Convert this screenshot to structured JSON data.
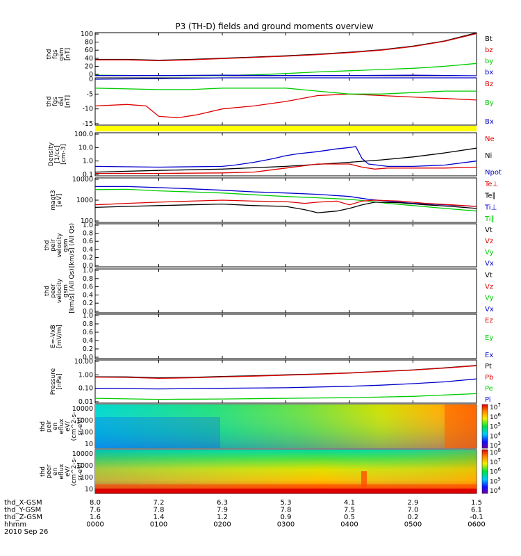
{
  "title": "P3 (TH-D) fields and ground moments overview",
  "chart_data": {
    "type": "line",
    "x_label": "hhmm",
    "date_label": "2010 Sep 26",
    "x_ticks": [
      "0000",
      "0100",
      "0200",
      "0300",
      "0400",
      "0500",
      "0600"
    ],
    "ephemeris": [
      {
        "label": "thd_X-GSM",
        "values": [
          "8.0",
          "7.2",
          "6.3",
          "5.3",
          "4.1",
          "2.9",
          "1.5"
        ]
      },
      {
        "label": "thd_Y-GSM",
        "values": [
          "7.6",
          "7.8",
          "7.9",
          "7.8",
          "7.5",
          "7.0",
          "6.1"
        ]
      },
      {
        "label": "thd_Z-GSM",
        "values": [
          "1.6",
          "1.4",
          "1.2",
          "0.9",
          "0.5",
          "0.2",
          "-0.1"
        ]
      }
    ],
    "panels": [
      {
        "id": "fgs-gsm",
        "ylabel": [
          "thd",
          "fgs",
          "gsm",
          "[nT]"
        ],
        "scale": "linear",
        "y_ticks": [
          "100",
          "80",
          "60",
          "40",
          "20",
          "0"
        ],
        "legend": [
          {
            "label": "Bt",
            "color": "#000000"
          },
          {
            "label": "bz",
            "color": "#dd0000"
          },
          {
            "label": "by",
            "color": "#00cc00"
          },
          {
            "label": "bx",
            "color": "#0000cc"
          }
        ],
        "series": [
          {
            "color": "#000000",
            "x": [
              0,
              0.5,
              1,
              1.5,
              2,
              2.5,
              3,
              3.5,
              4,
              4.5,
              5,
              5.5,
              6
            ],
            "y": [
              37,
              37,
              35,
              37,
              40,
              43,
              46,
              50,
              55,
              61,
              70,
              83,
              103
            ]
          },
          {
            "color": "#dd0000",
            "x": [
              0,
              0.5,
              1,
              1.5,
              2,
              2.5,
              3,
              3.5,
              4,
              4.5,
              5,
              5.5,
              6
            ],
            "y": [
              36,
              36,
              34,
              36,
              39,
              42,
              45,
              49,
              54,
              60,
              69,
              82,
              101
            ]
          },
          {
            "color": "#00cc00",
            "x": [
              0,
              1,
              2,
              2.5,
              3,
              3.5,
              4,
              4.5,
              5,
              5.5,
              6
            ],
            "y": [
              -2,
              -4,
              -3,
              -1,
              2,
              6,
              9,
              12,
              15,
              20,
              27
            ]
          },
          {
            "color": "#0000cc",
            "x": [
              0,
              1,
              2,
              3,
              4,
              5,
              6
            ],
            "y": [
              -3,
              -3,
              -2,
              -3,
              -3,
              -2,
              -4
            ]
          }
        ]
      },
      {
        "id": "fgs-dsl",
        "ylabel": [
          "thd",
          "fgs",
          "dsl",
          "[nT]"
        ],
        "scale": "linear",
        "y_ticks": [
          "0",
          "-5",
          "-10",
          "-15"
        ],
        "legend": [
          {
            "label": "Bz",
            "color": "#dd0000"
          },
          {
            "label": "By",
            "color": "#00cc00"
          },
          {
            "label": "Bx",
            "color": "#0000cc"
          }
        ],
        "series": [
          {
            "color": "#dd0000",
            "x": [
              0,
              0.5,
              0.8,
              1,
              1.3,
              1.6,
              2,
              2.5,
              3,
              3.5,
              4,
              4.5,
              5,
              5.5,
              6
            ],
            "y": [
              -9,
              -8.5,
              -9,
              -12.5,
              -13,
              -12,
              -10,
              -9,
              -7.5,
              -5.5,
              -5,
              -5.5,
              -6,
              -6.5,
              -7
            ]
          },
          {
            "color": "#00cc00",
            "x": [
              0,
              1,
              1.5,
              2,
              2.5,
              3,
              3.5,
              4,
              4.5,
              5,
              5.5,
              6
            ],
            "y": [
              -3,
              -3.5,
              -3.5,
              -3,
              -3,
              -3,
              -4,
              -5,
              -5,
              -4.5,
              -4,
              -4
            ]
          },
          {
            "color": "#0000cc",
            "x": [
              0,
              1,
              2,
              3,
              3.5,
              4,
              4.5,
              5,
              5.5,
              6
            ],
            "y": [
              0,
              0.2,
              0.5,
              0.5,
              1,
              1.5,
              1.8,
              2,
              2,
              2
            ]
          }
        ]
      },
      {
        "id": "density",
        "ylabel": [
          "Density",
          "[1/cc]",
          "[cm-3]"
        ],
        "scale": "log",
        "log_range": [
          0.1,
          100
        ],
        "y_ticks": [
          "100.0",
          "10.0",
          "1.0",
          "0.1"
        ],
        "legend": [
          {
            "label": "Ne",
            "color": "#dd0000"
          },
          {
            "label": "Ni",
            "color": "#000000"
          },
          {
            "label": "Npot",
            "color": "#0000cc"
          }
        ],
        "series": [
          {
            "color": "#0000cc",
            "x": [
              0,
              1,
              2,
              2.2,
              2.5,
              2.8,
              3,
              3.2,
              3.5,
              3.8,
              4,
              4.1,
              4.2,
              4.3,
              4.6,
              5,
              5.5,
              6
            ],
            "y": [
              0.4,
              0.35,
              0.4,
              0.5,
              0.8,
              1.5,
              2.5,
              3.5,
              5,
              8,
              10,
              12,
              1.5,
              0.6,
              0.4,
              0.4,
              0.5,
              1
            ]
          },
          {
            "color": "#000000",
            "x": [
              0,
              1,
              2,
              3,
              4,
              4.5,
              5,
              5.5,
              6
            ],
            "y": [
              0.15,
              0.2,
              0.25,
              0.4,
              0.8,
              1.2,
              2,
              4,
              9
            ]
          },
          {
            "color": "#dd0000",
            "x": [
              0,
              1,
              2,
              2.5,
              3,
              3.5,
              4,
              4.2,
              4.4,
              4.6,
              5,
              5.5,
              6
            ],
            "y": [
              0.12,
              0.12,
              0.13,
              0.15,
              0.3,
              0.6,
              0.6,
              0.35,
              0.25,
              0.3,
              0.3,
              0.3,
              0.35
            ]
          }
        ]
      },
      {
        "id": "temperature",
        "ylabel": [
          "magt3",
          "[eV]"
        ],
        "scale": "log",
        "log_range": [
          100,
          10000
        ],
        "y_ticks": [
          "10000",
          "1000",
          "100"
        ],
        "legend": [
          {
            "label": "Te⊥",
            "color": "#dd0000"
          },
          {
            "label": "Te∥",
            "color": "#000000"
          },
          {
            "label": "Ti⊥",
            "color": "#0000cc"
          },
          {
            "label": "Ti∥",
            "color": "#00cc00"
          }
        ],
        "series": [
          {
            "color": "#0000cc",
            "x": [
              0,
              0.5,
              1,
              1.5,
              2,
              2.5,
              3,
              3.5,
              4,
              4.3,
              4.6,
              5,
              5.5,
              6
            ],
            "y": [
              4500,
              4500,
              4000,
              3500,
              3000,
              2500,
              2200,
              1900,
              1500,
              1100,
              900,
              700,
              600,
              500
            ]
          },
          {
            "color": "#00cc00",
            "x": [
              0,
              0.5,
              1,
              1.5,
              2,
              2.5,
              3,
              3.5,
              4,
              4.3,
              4.6,
              5,
              5.5,
              6
            ],
            "y": [
              3200,
              3300,
              2800,
              2500,
              2200,
              1800,
              1500,
              1300,
              1100,
              900,
              700,
              550,
              400,
              300
            ]
          },
          {
            "color": "#dd0000",
            "x": [
              0,
              0.5,
              1,
              1.5,
              2,
              2.5,
              3,
              3.3,
              3.5,
              3.8,
              4,
              4.2,
              4.4,
              4.8,
              5.2,
              5.6,
              6
            ],
            "y": [
              600,
              700,
              800,
              900,
              1000,
              900,
              850,
              700,
              800,
              900,
              600,
              900,
              1000,
              900,
              700,
              600,
              500
            ]
          },
          {
            "color": "#000000",
            "x": [
              0,
              0.5,
              1,
              1.5,
              2,
              2.5,
              3,
              3.3,
              3.5,
              3.8,
              4,
              4.2,
              4.4,
              4.8,
              5.2,
              5.6,
              6
            ],
            "y": [
              450,
              500,
              550,
              600,
              650,
              550,
              500,
              350,
              250,
              300,
              400,
              600,
              800,
              750,
              600,
              500,
              400
            ]
          }
        ]
      },
      {
        "id": "peir-velocity",
        "ylabel": [
          "thd",
          "peir",
          "velocity",
          "gsm",
          "[km/s] (All Qs)"
        ],
        "scale": "linear",
        "y_ticks": [
          "1.0",
          "0.8",
          "0.6",
          "0.4",
          "0.2",
          "0.0"
        ],
        "legend": [
          {
            "label": "Vt",
            "color": "#000000"
          },
          {
            "label": "Vz",
            "color": "#dd0000"
          },
          {
            "label": "Vy",
            "color": "#00cc00"
          },
          {
            "label": "Vx",
            "color": "#0000cc"
          }
        ],
        "series": []
      },
      {
        "id": "peer-velocity",
        "ylabel": [
          "thd",
          "peer",
          "velocity",
          "gsm",
          "[km/s] (All Qs)"
        ],
        "scale": "linear",
        "y_ticks": [
          "1.0",
          "0.8",
          "0.6",
          "0.4",
          "0.2",
          "0.0"
        ],
        "legend": [
          {
            "label": "Vt",
            "color": "#000000"
          },
          {
            "label": "Vz",
            "color": "#dd0000"
          },
          {
            "label": "Vy",
            "color": "#00cc00"
          },
          {
            "label": "Vx",
            "color": "#0000cc"
          }
        ],
        "series": []
      },
      {
        "id": "e-field",
        "ylabel": [
          "E=-VxB",
          "[mV/m]"
        ],
        "scale": "linear",
        "y_ticks": [
          "1.0",
          "0.8",
          "0.6",
          "0.4",
          "0.2",
          "0.0"
        ],
        "legend": [
          {
            "label": "Ez",
            "color": "#dd0000"
          },
          {
            "label": "Ey",
            "color": "#00cc00"
          },
          {
            "label": "Ex",
            "color": "#0000cc"
          }
        ],
        "series": []
      },
      {
        "id": "pressure",
        "ylabel": [
          "Pressure",
          "[nPa]"
        ],
        "scale": "log",
        "log_range": [
          0.01,
          10
        ],
        "y_ticks": [
          "10.00",
          "1.00",
          "0.10",
          "0.01"
        ],
        "legend": [
          {
            "label": "Pt",
            "color": "#000000"
          },
          {
            "label": "Pb",
            "color": "#dd0000"
          },
          {
            "label": "Pe",
            "color": "#00cc00"
          },
          {
            "label": "Pi",
            "color": "#0000cc"
          }
        ],
        "series": [
          {
            "color": "#000000",
            "x": [
              0,
              0.5,
              1,
              1.5,
              2,
              2.5,
              3,
              3.5,
              4,
              4.5,
              5,
              5.5,
              6
            ],
            "y": [
              0.72,
              0.7,
              0.6,
              0.65,
              0.75,
              0.85,
              1,
              1.15,
              1.4,
              1.8,
              2.3,
              3.3,
              5
            ]
          },
          {
            "color": "#dd0000",
            "x": [
              0,
              0.5,
              1,
              1.5,
              2,
              2.5,
              3,
              3.5,
              4,
              4.5,
              5,
              5.5,
              6
            ],
            "y": [
              0.68,
              0.65,
              0.55,
              0.6,
              0.7,
              0.8,
              0.95,
              1.1,
              1.35,
              1.75,
              2.25,
              3.2,
              4.8
            ]
          },
          {
            "color": "#0000cc",
            "x": [
              0,
              1,
              2,
              3,
              4,
              4.5,
              5,
              5.5,
              6
            ],
            "y": [
              0.1,
              0.09,
              0.1,
              0.11,
              0.14,
              0.17,
              0.22,
              0.3,
              0.5
            ]
          },
          {
            "color": "#00cc00",
            "x": [
              0,
              1,
              2,
              3,
              4,
              5,
              6
            ],
            "y": [
              0.018,
              0.015,
              0.016,
              0.018,
              0.02,
              0.025,
              0.04
            ]
          }
        ]
      },
      {
        "id": "peir-eflux",
        "type": "spectrogram",
        "ylabel": [
          "thd",
          "peir",
          "en",
          "eflux",
          "eV/",
          "(cm^2-s-",
          "sr-eV)"
        ],
        "y_ticks": [
          "10000",
          "1000",
          "100",
          "10"
        ],
        "colorbar_ticks": [
          "10^7",
          "10^6",
          "10^5",
          "10^4",
          "10^3"
        ]
      },
      {
        "id": "peer-eflux",
        "type": "spectrogram",
        "ylabel": [
          "thd",
          "peer",
          "en",
          "eflux",
          "eV/",
          "(cm^2-s-",
          "sr-eV)"
        ],
        "y_ticks": [
          "10000",
          "1000",
          "100",
          "10"
        ],
        "colorbar_ticks": [
          "10^8",
          "10^7",
          "10^6",
          "10^5",
          "10^4"
        ]
      }
    ]
  }
}
